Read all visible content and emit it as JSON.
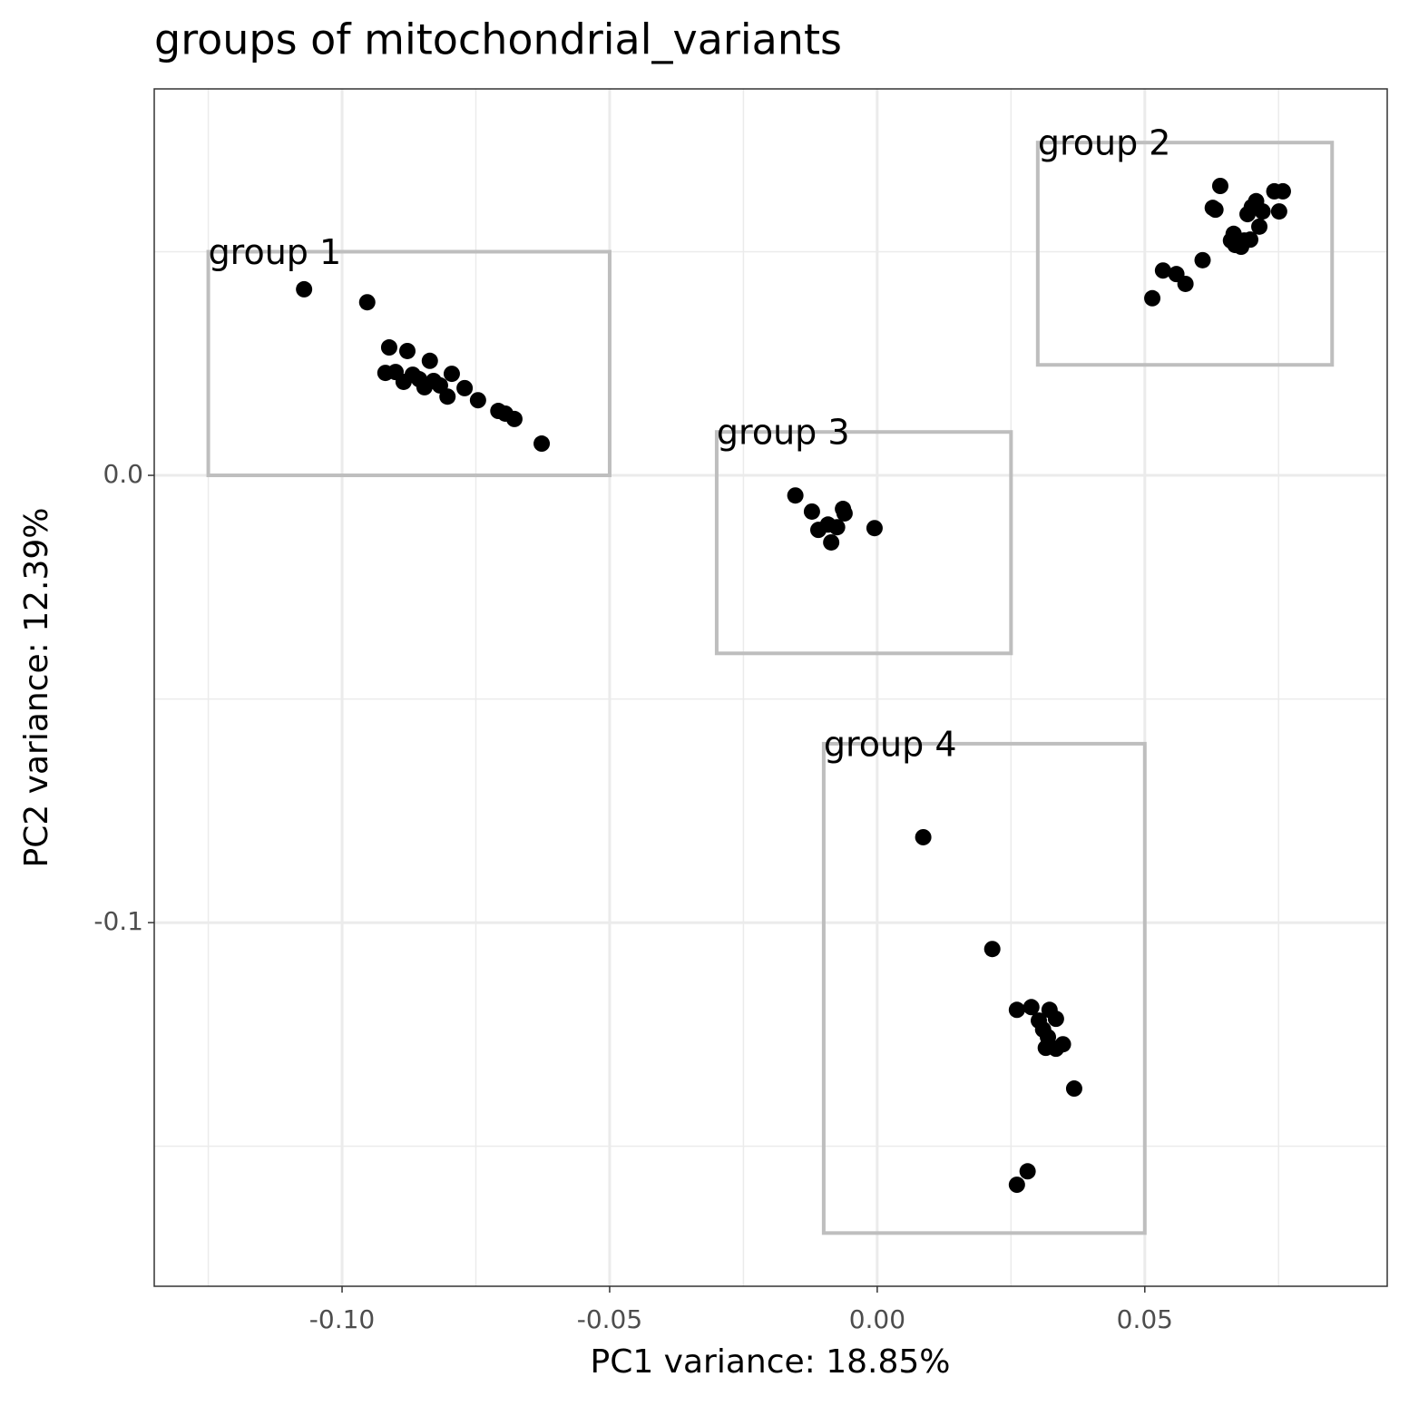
{
  "chart_data": {
    "type": "scatter",
    "title": "groups of mitochondrial_variants",
    "x_label": "PC1 variance: 18.85%",
    "y_label": "PC2 variance: 12.39%",
    "xlim": [
      -0.1351,
      0.0953
    ],
    "ylim": [
      -0.1813,
      0.0864
    ],
    "xticks": [
      {
        "value": -0.1,
        "label": "-0.10"
      },
      -0.05,
      {
        "value": 0,
        "label": "0.00"
      },
      0.05
    ],
    "yticks": [
      {
        "value": 0,
        "label": "0.0"
      },
      -0.1
    ],
    "x_minor_grid": [
      -0.125,
      -0.075,
      -0.025,
      0.025,
      0.075
    ],
    "y_minor_grid": [
      0.05,
      -0.05,
      -0.15
    ],
    "grid": true,
    "color": "#000000",
    "box_color": "#bebebe",
    "annotations": [
      {
        "label": "group 1",
        "xmin": -0.125,
        "xmax": -0.05,
        "ymin": 0.0,
        "ymax": 0.05
      },
      {
        "label": "group 2",
        "xmin": 0.03,
        "xmax": 0.085,
        "ymin": 0.0247,
        "ymax": 0.0744
      },
      {
        "label": "group 3",
        "xmin": -0.03,
        "xmax": 0.025,
        "ymin": -0.0398,
        "ymax": 0.0097
      },
      {
        "label": "group 4",
        "xmin": -0.01,
        "xmax": 0.05,
        "ymin": -0.1694,
        "ymax": -0.06
      }
    ],
    "x": [
      -0.1071,
      -0.0953,
      -0.0912,
      -0.0878,
      -0.0836,
      -0.0919,
      -0.09,
      -0.0885,
      -0.0868,
      -0.0856,
      -0.0846,
      -0.0829,
      -0.0817,
      -0.0803,
      -0.0795,
      -0.0771,
      -0.0746,
      -0.0708,
      -0.0695,
      -0.0678,
      -0.0627,
      0.0641,
      0.0627,
      0.0632,
      0.0742,
      0.0758,
      0.0708,
      0.07,
      0.072,
      0.0751,
      0.0692,
      0.0714,
      0.0666,
      0.0661,
      0.0686,
      0.0669,
      0.068,
      0.0697,
      0.0608,
      0.0534,
      0.0559,
      0.0576,
      0.0514,
      -0.0153,
      -0.0122,
      -0.0064,
      -0.0061,
      -0.0092,
      -0.0075,
      -0.011,
      -0.0086,
      -0.0005,
      0.0086,
      0.0215,
      0.0261,
      0.0288,
      0.0322,
      0.0334,
      0.0302,
      0.031,
      0.0319,
      0.0347,
      0.0315,
      0.0334,
      0.0368,
      0.0281,
      0.0261
    ],
    "values": [
      0.0416,
      0.0387,
      0.0286,
      0.0278,
      0.0256,
      0.0229,
      0.0231,
      0.0209,
      0.0225,
      0.0215,
      0.0197,
      0.0211,
      0.0201,
      0.0176,
      0.0227,
      0.0195,
      0.0168,
      0.0144,
      0.0138,
      0.0126,
      0.0071,
      0.0647,
      0.0598,
      0.0594,
      0.0635,
      0.0635,
      0.0613,
      0.06,
      0.059,
      0.059,
      0.0584,
      0.0556,
      0.054,
      0.0525,
      0.0525,
      0.0515,
      0.0511,
      0.0527,
      0.0481,
      0.0458,
      0.045,
      0.0428,
      0.0396,
      -0.0045,
      -0.0081,
      -0.0075,
      -0.0085,
      -0.011,
      -0.0116,
      -0.0122,
      -0.015,
      -0.0118,
      -0.0809,
      -0.1059,
      -0.1195,
      -0.1189,
      -0.1195,
      -0.1215,
      -0.1219,
      -0.1239,
      -0.1256,
      -0.1272,
      -0.128,
      -0.1282,
      -0.1371,
      -0.1556,
      -0.1586
    ]
  }
}
